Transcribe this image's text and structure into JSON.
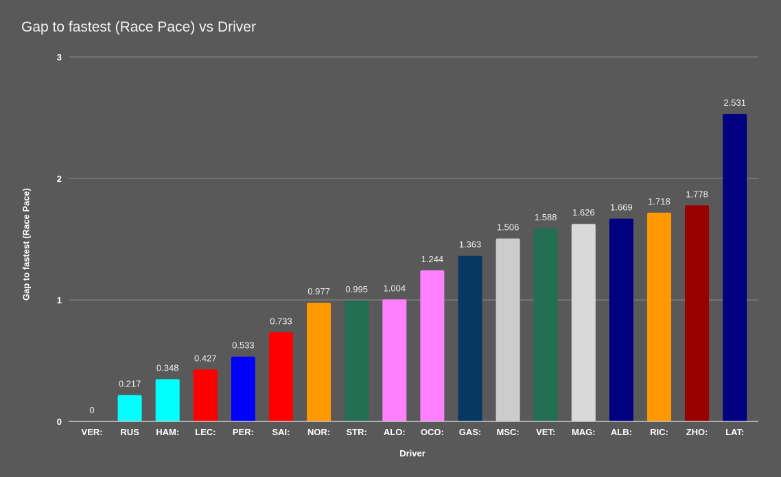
{
  "chart_data": {
    "type": "bar",
    "title": "Gap to fastest (Race Pace) vs Driver",
    "xlabel": "Driver",
    "ylabel": "Gap to fastest (Race Pace)",
    "ylim": [
      0,
      3
    ],
    "yticks": [
      "0",
      "1",
      "2",
      "3"
    ],
    "grid": true,
    "legend": "none",
    "categories": [
      "VER:",
      "RUS",
      "HAM:",
      "LEC:",
      "PER:",
      "SAI:",
      "NOR:",
      "STR:",
      "ALO:",
      "OCO:",
      "GAS:",
      "MSC:",
      "VET:",
      "MAG:",
      "ALB:",
      "RIC:",
      "ZHO:",
      "LAT:"
    ],
    "values": [
      0,
      0.217,
      0.348,
      0.427,
      0.533,
      0.733,
      0.977,
      0.995,
      1.004,
      1.244,
      1.363,
      1.506,
      1.588,
      1.626,
      1.669,
      1.718,
      1.778,
      2.531
    ],
    "data_labels": [
      "0",
      "0.217",
      "0.348",
      "0.427",
      "0.533",
      "0.733",
      "0.977",
      "0.995",
      "1.004",
      "1.244",
      "1.363",
      "1.506",
      "1.588",
      "1.626",
      "1.669",
      "1.718",
      "1.778",
      "2.531"
    ],
    "bar_colors": [
      "#00ffff",
      "#00ffff",
      "#00ffff",
      "#ff0000",
      "#0000ff",
      "#ff0000",
      "#ff9900",
      "#246e54",
      "#ff80ff",
      "#ff80ff",
      "#073763",
      "#cccccc",
      "#246e54",
      "#d9d9d9",
      "#000080",
      "#ff9900",
      "#990000",
      "#000080"
    ]
  },
  "colors": {
    "background": "#595959",
    "gridline": "#8c8c8c",
    "baseline": "#cccccc"
  }
}
